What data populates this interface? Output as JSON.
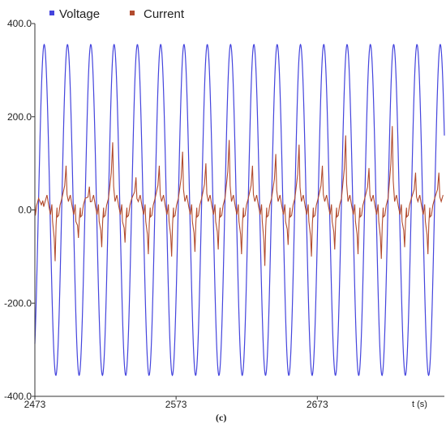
{
  "chart_data": {
    "type": "line",
    "title": "",
    "caption": "(c)",
    "xlabel": "t (s)",
    "ylabel": "",
    "xlim": [
      2473,
      2763
    ],
    "ylim": [
      -400,
      400
    ],
    "x_ticks": [
      2473,
      2573,
      2673
    ],
    "y_ticks": [
      400,
      200,
      0,
      -200,
      -400
    ],
    "y_tick_labels": [
      "400.0",
      "200.0",
      "0.0",
      "-200.0",
      "-400.0"
    ],
    "x_tick_labels": [
      "2473",
      "2573",
      "2673"
    ],
    "grid": false,
    "legend_position": "top-left",
    "series": [
      {
        "name": "Voltage",
        "color": "#4444dd",
        "waveform": "sine",
        "amplitude": 355,
        "period": 16.5,
        "peak_times": [
          2479.6,
          2496.1,
          2512.6,
          2529.1,
          2545.6,
          2562.1,
          2578.6,
          2595.1,
          2611.6,
          2628.1,
          2644.6,
          2661.1,
          2677.6,
          2694.1,
          2710.6,
          2727.1,
          2743.6,
          2760.1
        ]
      },
      {
        "name": "Current",
        "color": "#b24b2e",
        "waveform": "spiky",
        "baseline": 0,
        "positive_peaks": [
          20,
          95,
          50,
          145,
          70,
          95,
          125,
          100,
          150,
          95,
          120,
          140,
          95,
          160,
          90,
          180,
          80,
          80
        ],
        "negative_peaks": [
          -110,
          -60,
          -80,
          -70,
          -95,
          -100,
          -90,
          -85,
          -95,
          -120,
          -75,
          -100,
          -85,
          -95,
          -105,
          -80,
          -95,
          -90
        ]
      }
    ]
  }
}
